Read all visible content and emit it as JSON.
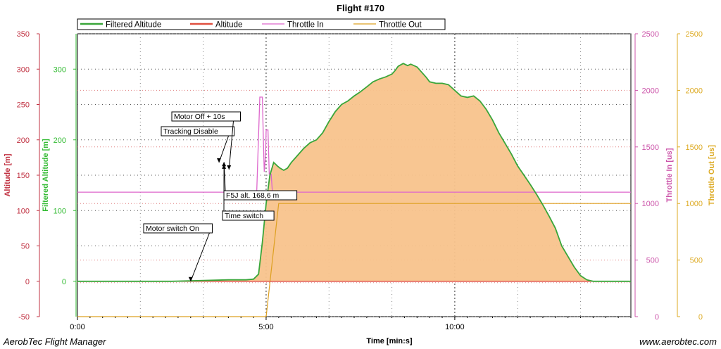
{
  "chart_data": {
    "type": "area",
    "title": "Flight #170",
    "xlabel": "Time [min:s]",
    "x_tick_labels": [
      "0:00",
      "5:00",
      "10:00"
    ],
    "x_ticks_sec": [
      0,
      300,
      600
    ],
    "xlim_sec": [
      0,
      880
    ],
    "legend_placement": "top",
    "grid": true,
    "axes": {
      "altitude": {
        "label": "Altitude [m]",
        "ticks": [
          350,
          300,
          250,
          200,
          150,
          100,
          50,
          0,
          -50
        ],
        "range": [
          -50,
          350
        ],
        "color": "#c03040"
      },
      "filtered_altitude": {
        "label": "Filtered Altitude [m]",
        "ticks": [
          300,
          200,
          100,
          0
        ],
        "range": [
          -50,
          350
        ],
        "color": "#33bb33"
      },
      "throttle_in": {
        "label": "Throttle In [us]",
        "ticks": [
          2500,
          2000,
          1500,
          1000,
          500,
          0
        ],
        "range": [
          0,
          2500
        ],
        "color": "#cc55aa"
      },
      "throttle_out": {
        "label": "Throttle Out [us]",
        "ticks": [
          2500,
          2000,
          1500,
          1000,
          500,
          0
        ],
        "range": [
          0,
          2500
        ],
        "color": "#ddaa22"
      }
    },
    "series": [
      {
        "name": "Filtered Altitude",
        "color": "#3aa63a",
        "fill": "#f8c38c",
        "points": [
          [
            0,
            0
          ],
          [
            150,
            0
          ],
          [
            190,
            0.5
          ],
          [
            210,
            1
          ],
          [
            230,
            1.5
          ],
          [
            250,
            2
          ],
          [
            265,
            1.5
          ],
          [
            275,
            1
          ],
          [
            200,
            1
          ],
          [
            200,
            1
          ],
          [
            0,
            0
          ]
        ]
      },
      {
        "name": "Altitude",
        "color": "#e05040",
        "points": [
          [
            0,
            0
          ],
          [
            880,
            0
          ]
        ]
      },
      {
        "name": "Throttle In",
        "color": "#dd66cc"
      },
      {
        "name": "Throttle Out",
        "color": "#dda020"
      }
    ],
    "filtered_altitude_points": [
      [
        0,
        0
      ],
      [
        150,
        0
      ],
      [
        200,
        1
      ],
      [
        240,
        2
      ],
      [
        268,
        2
      ],
      [
        280,
        3
      ],
      [
        288,
        10
      ],
      [
        294,
        55
      ],
      [
        300,
        110
      ],
      [
        306,
        150
      ],
      [
        312,
        168
      ],
      [
        318,
        163
      ],
      [
        322,
        160
      ],
      [
        328,
        157
      ],
      [
        334,
        160
      ],
      [
        340,
        168
      ],
      [
        350,
        178
      ],
      [
        360,
        188
      ],
      [
        370,
        196
      ],
      [
        380,
        200
      ],
      [
        390,
        210
      ],
      [
        400,
        226
      ],
      [
        410,
        240
      ],
      [
        420,
        250
      ],
      [
        430,
        255
      ],
      [
        440,
        262
      ],
      [
        450,
        268
      ],
      [
        460,
        275
      ],
      [
        470,
        282
      ],
      [
        480,
        286
      ],
      [
        490,
        289
      ],
      [
        500,
        293
      ],
      [
        505,
        298
      ],
      [
        510,
        304
      ],
      [
        518,
        308
      ],
      [
        525,
        305
      ],
      [
        530,
        307
      ],
      [
        540,
        303
      ],
      [
        548,
        295
      ],
      [
        555,
        288
      ],
      [
        560,
        282
      ],
      [
        570,
        280
      ],
      [
        580,
        280
      ],
      [
        590,
        278
      ],
      [
        600,
        270
      ],
      [
        610,
        262
      ],
      [
        620,
        260
      ],
      [
        630,
        262
      ],
      [
        640,
        255
      ],
      [
        650,
        243
      ],
      [
        660,
        228
      ],
      [
        670,
        210
      ],
      [
        680,
        195
      ],
      [
        690,
        180
      ],
      [
        700,
        163
      ],
      [
        710,
        150
      ],
      [
        720,
        137
      ],
      [
        730,
        123
      ],
      [
        740,
        108
      ],
      [
        750,
        92
      ],
      [
        760,
        75
      ],
      [
        770,
        50
      ],
      [
        780,
        35
      ],
      [
        790,
        20
      ],
      [
        800,
        8
      ],
      [
        810,
        2
      ],
      [
        820,
        0
      ],
      [
        880,
        0
      ]
    ],
    "throttle_in_points": [
      [
        0,
        1100
      ],
      [
        200,
        1100
      ],
      [
        200,
        1100
      ],
      [
        275,
        1100
      ],
      [
        285,
        1100
      ],
      [
        290,
        1940
      ],
      [
        294,
        1940
      ],
      [
        296,
        1480
      ],
      [
        297,
        1280
      ],
      [
        299,
        1420
      ],
      [
        300,
        1650
      ],
      [
        303,
        1650
      ],
      [
        305,
        1260
      ],
      [
        308,
        1260
      ],
      [
        310,
        1100
      ],
      [
        880,
        1100
      ]
    ],
    "throttle_out_points": [
      [
        0,
        0
      ],
      [
        300,
        0
      ],
      [
        320,
        1000
      ],
      [
        880,
        1000
      ]
    ],
    "annotations": [
      {
        "text": "Motor switch On",
        "t": 201,
        "alt": 0
      },
      {
        "text": "Time switch",
        "t": 233,
        "alt": 165
      },
      {
        "text": "F5J alt. 168,6 m",
        "t": 233,
        "alt": 168.6
      },
      {
        "text": "Tracking Disable",
        "t": 227,
        "alt": 168
      },
      {
        "text": "Motor Off + 10s",
        "t": 241,
        "alt": 158
      }
    ]
  },
  "footer": {
    "left": "AerobTec Flight Manager",
    "right": "www.aerobtec.com"
  }
}
